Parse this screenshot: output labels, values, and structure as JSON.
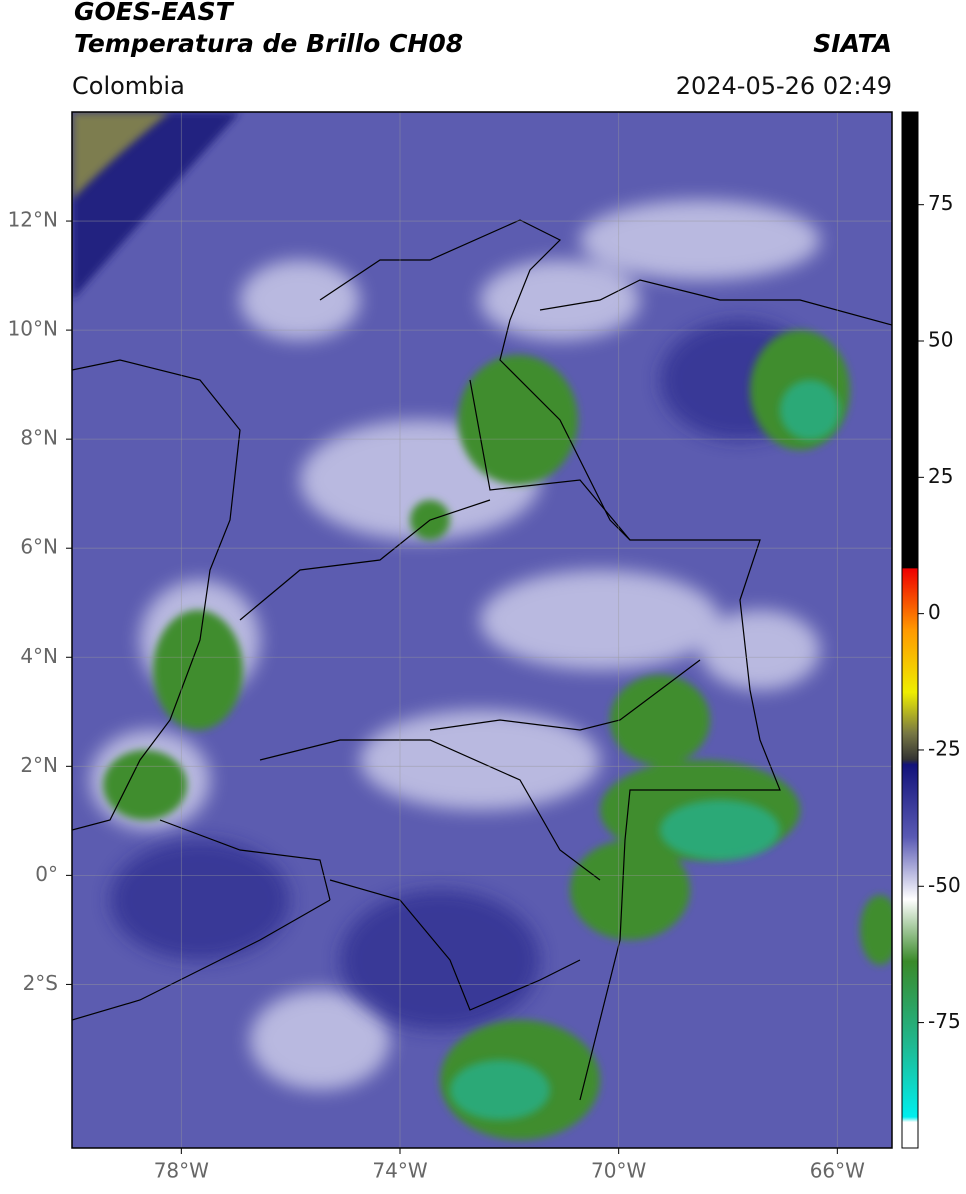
{
  "header": {
    "title": "GOES-EAST",
    "subtitle": "Temperatura de Brillo CH08",
    "source": "SIATA",
    "region": "Colombia",
    "datetime": "2024-05-26 02:49"
  },
  "map": {
    "xlim": [
      -80,
      -65
    ],
    "ylim": [
      -5,
      14
    ],
    "xticks": [
      {
        "value": -78,
        "label": "78°W"
      },
      {
        "value": -74,
        "label": "74°W"
      },
      {
        "value": -70,
        "label": "70°W"
      },
      {
        "value": -66,
        "label": "66°W"
      }
    ],
    "yticks": [
      {
        "value": 12,
        "label": "12°N"
      },
      {
        "value": 10,
        "label": "10°N"
      },
      {
        "value": 8,
        "label": "8°N"
      },
      {
        "value": 6,
        "label": "6°N"
      },
      {
        "value": 4,
        "label": "4°N"
      },
      {
        "value": 2,
        "label": "2°N"
      },
      {
        "value": 0,
        "label": "0°"
      },
      {
        "value": -2,
        "label": "2°S"
      }
    ],
    "grid": true
  },
  "colorbar": {
    "lim": [
      -98,
      92
    ],
    "ticks": [
      75,
      50,
      25,
      0,
      -25,
      -50,
      -75
    ]
  }
}
